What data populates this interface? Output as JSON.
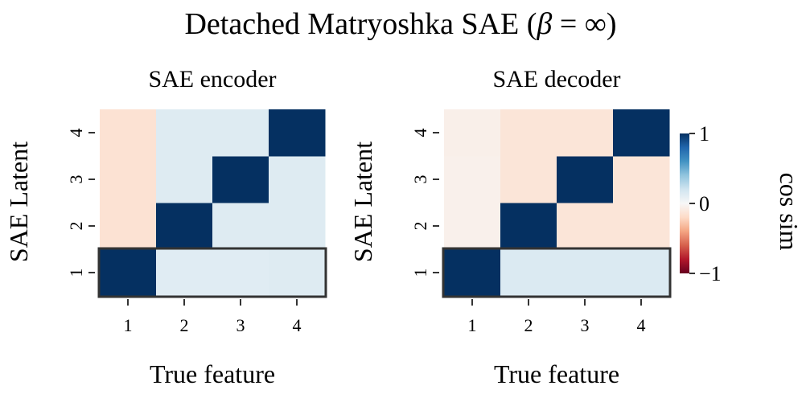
{
  "figure": {
    "title_text": "Detached Matryoshka SAE (",
    "title_beta": "β",
    "title_eq": " = ∞)"
  },
  "colorbar": {
    "label": "cos sim",
    "ticks": [
      {
        "value": 1,
        "label": "1"
      },
      {
        "value": 0,
        "label": "0"
      },
      {
        "value": -1,
        "label": "−1"
      }
    ],
    "range": [
      -1,
      1
    ],
    "colormap": "RdBu",
    "stops": [
      "#67001f",
      "#b2182b",
      "#d6604d",
      "#f4a582",
      "#fddbc7",
      "#f7f7f7",
      "#d1e5f0",
      "#92c5de",
      "#4393c3",
      "#2166ac",
      "#053061"
    ]
  },
  "chart_data": [
    {
      "type": "heatmap",
      "title": "SAE encoder",
      "xlabel": "True feature",
      "ylabel": "SAE Latent",
      "x_categories": [
        "1",
        "2",
        "3",
        "4"
      ],
      "y_categories": [
        "1",
        "2",
        "3",
        "4"
      ],
      "values": [
        [
          1.0,
          0.12,
          0.12,
          0.13
        ],
        [
          -0.15,
          1.0,
          0.13,
          0.13
        ],
        [
          -0.15,
          0.13,
          1.0,
          0.13
        ],
        [
          -0.15,
          0.13,
          0.13,
          1.0
        ]
      ],
      "highlight_row": "1",
      "vmin": -1,
      "vmax": 1
    },
    {
      "type": "heatmap",
      "title": "SAE decoder",
      "xlabel": "True feature",
      "ylabel": "",
      "x_categories": [
        "1",
        "2",
        "3",
        "4"
      ],
      "y_categories": [
        "1",
        "2",
        "3",
        "4"
      ],
      "values": [
        [
          1.0,
          0.15,
          0.15,
          0.15
        ],
        [
          -0.05,
          1.0,
          -0.13,
          -0.13
        ],
        [
          -0.05,
          -0.13,
          1.0,
          -0.13
        ],
        [
          -0.06,
          -0.13,
          -0.13,
          1.0
        ]
      ],
      "highlight_row": "1",
      "vmin": -1,
      "vmax": 1
    }
  ]
}
